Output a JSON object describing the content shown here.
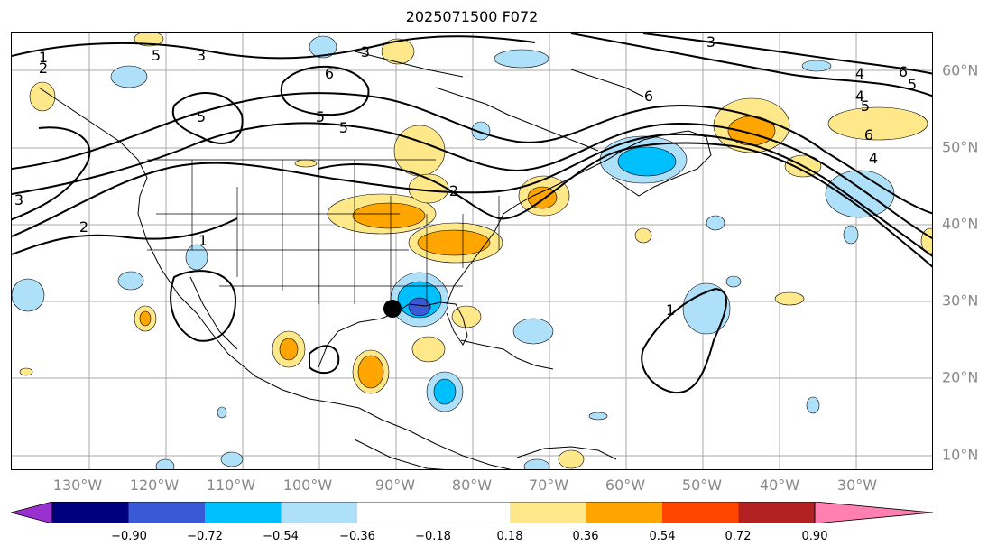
{
  "title": "2025071500 F072",
  "lon_labels": [
    "130°W",
    "120°W",
    "110°W",
    "100°W",
    "90°W",
    "80°W",
    "70°W",
    "60°W",
    "50°W",
    "40°W",
    "30°W"
  ],
  "lat_labels": [
    "60°N",
    "50°N",
    "40°N",
    "30°N",
    "20°N",
    "10°N"
  ],
  "colorbar": {
    "ticks": [
      "−0.90",
      "−0.72",
      "−0.54",
      "−0.36",
      "−0.18",
      "0.18",
      "0.36",
      "0.54",
      "0.72",
      "0.90"
    ],
    "under_color": "#9b30d0",
    "over_color": "#ff80b0",
    "colors": [
      "#00007f",
      "#3a59d6",
      "#00bfff",
      "#aee0fa",
      "#ffffff",
      "#fee88a",
      "#ffa500",
      "#ff4500",
      "#b22222"
    ]
  },
  "contour_labels": [
    "1",
    "2",
    "5",
    "5",
    "3",
    "5",
    "6",
    "5",
    "6",
    "3",
    "4",
    "6",
    "5",
    "4",
    "5",
    "6",
    "4",
    "3",
    "3",
    "2",
    "1",
    "1",
    "2"
  ],
  "marker": "storm-center"
}
